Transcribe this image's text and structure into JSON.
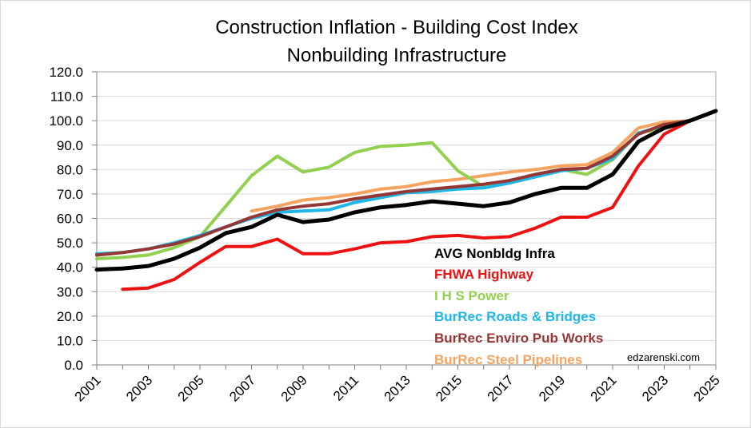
{
  "chart_data": {
    "type": "line",
    "title_line1": "Construction Inflation - Building Cost Index",
    "title_line2": "Nonbuilding Infrastructure",
    "xlabel": "",
    "ylabel": "",
    "xlim": [
      2001,
      2025
    ],
    "ylim": [
      0,
      120
    ],
    "y_ticks": [
      "0.0",
      "10.0",
      "20.0",
      "30.0",
      "40.0",
      "50.0",
      "60.0",
      "70.0",
      "80.0",
      "90.0",
      "100.0",
      "110.0",
      "120.0"
    ],
    "x_ticks": [
      "2001",
      "2003",
      "2005",
      "2007",
      "2009",
      "2011",
      "2013",
      "2015",
      "2017",
      "2019",
      "2021",
      "2023",
      "2025"
    ],
    "grid": true,
    "legend_position": "center-right",
    "watermark": "edzarenski.com",
    "series": [
      {
        "name": "BurRec Steel Pipelines",
        "color": "#f4a460",
        "x": [
          2007,
          2008,
          2009,
          2010,
          2011,
          2012,
          2013,
          2014,
          2015,
          2016,
          2017,
          2018,
          2019,
          2020,
          2021,
          2022,
          2023,
          2024
        ],
        "values": [
          63.0,
          65.0,
          67.5,
          68.5,
          70.0,
          72.0,
          73.0,
          75.0,
          76.0,
          77.5,
          79.0,
          80.0,
          81.5,
          82.0,
          87.0,
          97.0,
          99.5,
          100.0
        ]
      },
      {
        "name": "I H S Power",
        "color": "#92d050",
        "x": [
          2001,
          2002,
          2003,
          2004,
          2005,
          2006,
          2007,
          2008,
          2009,
          2010,
          2011,
          2012,
          2013,
          2014,
          2015,
          2016,
          2017,
          2018,
          2019,
          2020,
          2021,
          2022,
          2023,
          2024
        ],
        "values": [
          43.5,
          44.0,
          45.0,
          48.0,
          52.5,
          65.0,
          77.5,
          85.5,
          79.0,
          81.0,
          87.0,
          89.5,
          90.0,
          91.0,
          79.5,
          73.0,
          75.0,
          78.0,
          80.0,
          78.0,
          84.0,
          95.0,
          97.0,
          100.0
        ]
      },
      {
        "name": "BurRec Roads & Bridges",
        "color": "#1fb6e8",
        "x": [
          2001,
          2002,
          2003,
          2004,
          2005,
          2006,
          2007,
          2008,
          2009,
          2010,
          2011,
          2012,
          2013,
          2014,
          2015,
          2016,
          2017,
          2018,
          2019,
          2020,
          2021,
          2022,
          2023,
          2024
        ],
        "values": [
          45.5,
          46.0,
          47.5,
          50.0,
          53.0,
          56.5,
          60.0,
          62.5,
          63.0,
          63.5,
          66.5,
          68.5,
          70.5,
          71.0,
          72.0,
          72.5,
          74.5,
          77.0,
          79.5,
          80.5,
          84.5,
          95.0,
          98.0,
          100.0
        ]
      },
      {
        "name": "BurRec Enviro Pub Works",
        "color": "#953735",
        "x": [
          2001,
          2002,
          2003,
          2004,
          2005,
          2006,
          2007,
          2008,
          2009,
          2010,
          2011,
          2012,
          2013,
          2014,
          2015,
          2016,
          2017,
          2018,
          2019,
          2020,
          2021,
          2022,
          2023,
          2024
        ],
        "values": [
          45.0,
          46.0,
          47.5,
          49.5,
          52.5,
          56.5,
          60.5,
          63.5,
          65.0,
          66.0,
          68.0,
          69.5,
          71.0,
          72.0,
          73.0,
          74.0,
          75.5,
          78.0,
          80.0,
          80.5,
          85.5,
          94.5,
          98.5,
          100.0
        ]
      },
      {
        "name": "FHWA Highway",
        "color": "#ee1111",
        "x": [
          2002,
          2003,
          2004,
          2005,
          2006,
          2007,
          2008,
          2009,
          2010,
          2011,
          2012,
          2013,
          2014,
          2015,
          2016,
          2017,
          2018,
          2019,
          2020,
          2021,
          2022,
          2023,
          2024
        ],
        "values": [
          31.0,
          31.5,
          35.0,
          42.0,
          48.5,
          48.5,
          51.5,
          45.5,
          45.5,
          47.5,
          50.0,
          50.5,
          52.5,
          53.0,
          52.0,
          52.5,
          56.0,
          60.5,
          60.5,
          64.5,
          81.5,
          94.5,
          100.0
        ]
      },
      {
        "name": "AVG Nonbldg Infra",
        "color": "#000000",
        "x": [
          2001,
          2002,
          2003,
          2004,
          2005,
          2006,
          2007,
          2008,
          2009,
          2010,
          2011,
          2012,
          2013,
          2014,
          2015,
          2016,
          2017,
          2018,
          2019,
          2020,
          2021,
          2022,
          2023,
          2024,
          2025
        ],
        "values": [
          39.0,
          39.5,
          40.5,
          43.5,
          48.0,
          54.0,
          56.5,
          61.5,
          58.5,
          59.5,
          62.5,
          64.5,
          65.5,
          67.0,
          66.0,
          65.0,
          66.5,
          70.0,
          72.5,
          72.5,
          78.0,
          91.5,
          97.0,
          100.0,
          104.0
        ]
      }
    ]
  }
}
